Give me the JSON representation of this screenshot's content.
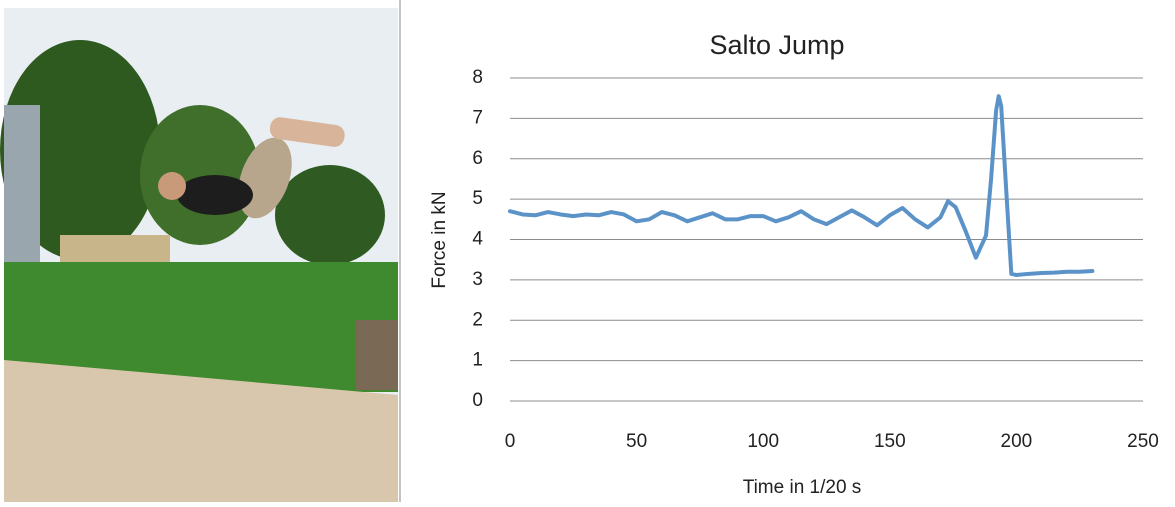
{
  "chart_data": {
    "type": "line",
    "title": "Salto Jump",
    "x_label": "Time in 1/20 s",
    "y_label": "Force in kN",
    "x": [
      0,
      5,
      10,
      15,
      20,
      25,
      30,
      35,
      40,
      45,
      50,
      55,
      60,
      65,
      70,
      75,
      80,
      85,
      90,
      95,
      100,
      105,
      110,
      115,
      120,
      125,
      130,
      135,
      140,
      145,
      150,
      155,
      160,
      165,
      170,
      173,
      176,
      180,
      184,
      188,
      190,
      192,
      193,
      194,
      196,
      198,
      200,
      205,
      210,
      215,
      220,
      225,
      230
    ],
    "values": [
      4.7,
      4.62,
      4.6,
      4.68,
      4.62,
      4.58,
      4.62,
      4.6,
      4.68,
      4.62,
      4.45,
      4.5,
      4.68,
      4.6,
      4.45,
      4.55,
      4.65,
      4.5,
      4.5,
      4.58,
      4.58,
      4.45,
      4.55,
      4.7,
      4.5,
      4.38,
      4.55,
      4.72,
      4.55,
      4.35,
      4.6,
      4.78,
      4.5,
      4.3,
      4.55,
      4.95,
      4.8,
      4.2,
      3.55,
      4.1,
      5.5,
      7.2,
      7.55,
      7.3,
      5.2,
      3.15,
      3.12,
      3.15,
      3.17,
      3.18,
      3.2,
      3.2,
      3.22
    ],
    "color": "#5b93c9",
    "xlim": [
      0,
      250
    ],
    "xticks": [
      0,
      50,
      100,
      150,
      200,
      250
    ],
    "ylim": [
      0,
      8
    ],
    "yticks": [
      0,
      1,
      2,
      3,
      4,
      5,
      6,
      7,
      8
    ],
    "grid": true
  }
}
